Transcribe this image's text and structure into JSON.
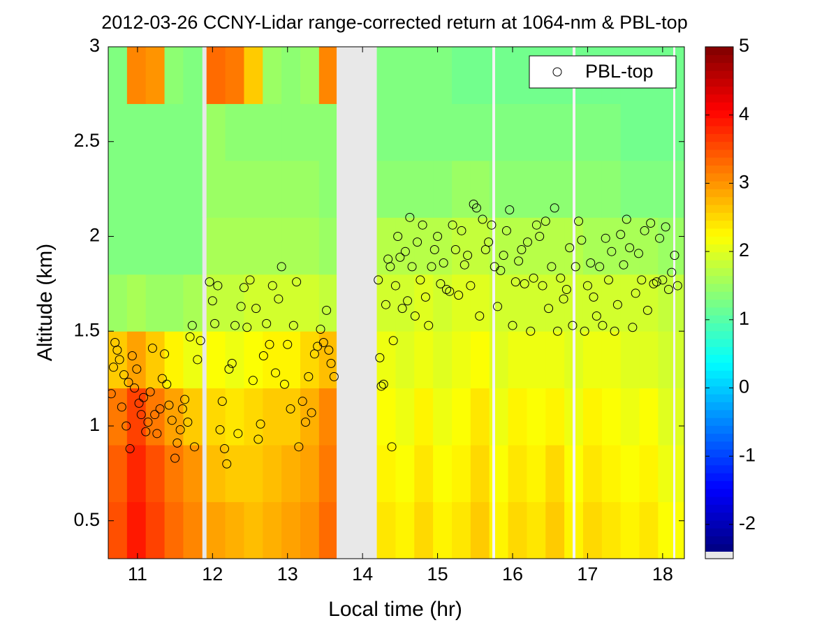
{
  "chart_data": {
    "type": "heatmap",
    "title": "2012-03-26 CCNY-Lidar range-corrected return at 1064-nm & PBL-top",
    "xlabel": "Local time (hr)",
    "ylabel": "Altitude (km)",
    "xlim": [
      10.61,
      18.29
    ],
    "ylim": [
      0.3,
      3
    ],
    "xticks": [
      11,
      12,
      13,
      14,
      15,
      16,
      17,
      18
    ],
    "yticks": [
      0.5,
      1,
      1.5,
      2,
      2.5,
      3
    ],
    "clim": [
      -2.4,
      5
    ],
    "colorbar_ticks": [
      -2,
      -1,
      0,
      1,
      2,
      3,
      4,
      5
    ],
    "colormap": "jet",
    "legend_position": "upper right",
    "x_edges": [
      10.61,
      10.86,
      11.11,
      11.36,
      11.61,
      11.86,
      11.92,
      12.17,
      12.42,
      12.67,
      12.92,
      13.17,
      13.42,
      13.65,
      14.19,
      14.44,
      14.69,
      14.94,
      15.19,
      15.44,
      15.69,
      15.94,
      16.19,
      16.44,
      16.69,
      16.94,
      17.19,
      17.44,
      17.69,
      17.94,
      18.29
    ],
    "y_edges": [
      0.3,
      0.6,
      0.9,
      1.2,
      1.5,
      1.8,
      2.1,
      2.4,
      2.7,
      3.0
    ],
    "z": [
      [
        3.5,
        3.9,
        3.6,
        3.3,
        3.1,
        null,
        2.9,
        2.8,
        2.7,
        2.8,
        2.9,
        3.0,
        3.3,
        null,
        2.4,
        2.3,
        2.5,
        2.3,
        2.4,
        2.6,
        2.3,
        2.5,
        2.4,
        2.6,
        2.3,
        2.5,
        2.4,
        2.3,
        2.4,
        2.2
      ],
      [
        3.4,
        3.8,
        3.5,
        3.2,
        3.0,
        null,
        2.7,
        2.6,
        2.6,
        2.7,
        2.8,
        2.9,
        3.2,
        null,
        2.3,
        2.2,
        2.4,
        2.2,
        2.3,
        2.5,
        2.2,
        2.4,
        2.3,
        2.5,
        2.2,
        2.4,
        2.3,
        2.2,
        2.3,
        2.1
      ],
      [
        3.2,
        3.6,
        3.2,
        2.9,
        2.6,
        null,
        2.5,
        2.4,
        2.5,
        2.6,
        2.6,
        2.8,
        3.1,
        null,
        2.2,
        2.1,
        2.3,
        2.1,
        2.2,
        2.4,
        2.1,
        2.3,
        2.2,
        2.3,
        2.1,
        2.3,
        2.2,
        2.1,
        2.2,
        2.0
      ],
      [
        2.6,
        2.9,
        2.6,
        2.3,
        2.1,
        null,
        2.2,
        2.1,
        2.2,
        2.3,
        2.3,
        2.5,
        2.7,
        null,
        2.1,
        2.0,
        2.1,
        2.0,
        2.1,
        2.2,
        2.0,
        2.1,
        2.1,
        2.1,
        2.0,
        2.1,
        2.1,
        2.0,
        2.0,
        1.9
      ],
      [
        1.5,
        1.6,
        1.5,
        1.5,
        1.6,
        null,
        1.8,
        1.8,
        1.9,
        1.9,
        1.9,
        1.9,
        1.8,
        null,
        1.9,
        1.9,
        2.0,
        1.9,
        2.0,
        2.0,
        1.9,
        1.9,
        1.9,
        1.9,
        1.9,
        1.9,
        1.9,
        1.9,
        1.9,
        1.8
      ],
      [
        1.3,
        1.3,
        1.3,
        1.3,
        1.3,
        null,
        1.6,
        1.6,
        1.6,
        1.6,
        1.6,
        1.6,
        1.5,
        null,
        1.7,
        1.7,
        1.7,
        1.7,
        1.8,
        1.8,
        1.7,
        1.7,
        1.7,
        1.7,
        1.7,
        1.6,
        1.6,
        1.6,
        1.6,
        1.5
      ],
      [
        1.3,
        1.3,
        1.3,
        1.3,
        1.3,
        null,
        1.5,
        1.5,
        1.5,
        1.5,
        1.5,
        1.5,
        1.4,
        null,
        1.4,
        1.4,
        1.4,
        1.4,
        1.5,
        1.5,
        1.4,
        1.4,
        1.4,
        1.4,
        1.4,
        1.4,
        1.4,
        1.3,
        1.3,
        1.3
      ],
      [
        1.3,
        1.3,
        1.3,
        1.3,
        1.3,
        null,
        1.5,
        1.4,
        1.4,
        1.4,
        1.4,
        1.4,
        1.4,
        null,
        1.3,
        1.3,
        1.3,
        1.3,
        1.3,
        1.3,
        1.3,
        1.3,
        1.3,
        1.3,
        1.3,
        1.3,
        1.3,
        1.2,
        1.2,
        1.2
      ],
      [
        1.3,
        3.1,
        3.0,
        1.4,
        1.3,
        null,
        3.3,
        3.2,
        2.6,
        1.5,
        1.4,
        1.5,
        3.1,
        null,
        1.3,
        1.3,
        1.3,
        1.3,
        1.2,
        1.2,
        1.2,
        1.2,
        1.2,
        1.2,
        1.2,
        1.2,
        1.2,
        1.2,
        1.2,
        1.2
      ]
    ],
    "series": [
      {
        "name": "PBL-top",
        "color": "#000000",
        "x": [
          10.65,
          10.68,
          10.7,
          10.73,
          10.76,
          10.79,
          10.82,
          10.85,
          10.88,
          10.9,
          10.93,
          10.96,
          10.99,
          11.02,
          11.05,
          11.08,
          11.11,
          11.14,
          11.17,
          11.2,
          11.23,
          11.26,
          11.3,
          11.33,
          11.36,
          11.39,
          11.42,
          11.46,
          11.5,
          11.53,
          11.57,
          11.6,
          11.63,
          11.67,
          11.7,
          11.73,
          11.76,
          11.8,
          11.84,
          11.96,
          12.0,
          12.03,
          12.07,
          12.1,
          12.13,
          12.16,
          12.19,
          12.22,
          12.26,
          12.3,
          12.34,
          12.38,
          12.42,
          12.46,
          12.5,
          12.54,
          12.58,
          12.61,
          12.64,
          12.68,
          12.72,
          12.76,
          12.8,
          12.84,
          12.88,
          12.92,
          12.96,
          13.0,
          13.04,
          13.08,
          13.12,
          13.15,
          13.2,
          13.24,
          13.28,
          13.32,
          13.36,
          13.4,
          13.44,
          13.48,
          13.52,
          13.55,
          13.58,
          13.62,
          14.21,
          14.23,
          14.25,
          14.28,
          14.31,
          14.34,
          14.37,
          14.39,
          14.41,
          14.44,
          14.47,
          14.5,
          14.53,
          14.57,
          14.6,
          14.63,
          14.66,
          14.7,
          14.73,
          14.77,
          14.8,
          14.84,
          14.88,
          14.92,
          14.96,
          15.0,
          15.04,
          15.08,
          15.12,
          15.16,
          15.2,
          15.24,
          15.28,
          15.32,
          15.36,
          15.4,
          15.44,
          15.48,
          15.52,
          15.56,
          15.6,
          15.64,
          15.68,
          15.72,
          15.76,
          15.8,
          15.84,
          15.88,
          15.92,
          15.96,
          16.0,
          16.04,
          16.08,
          16.12,
          16.16,
          16.2,
          16.24,
          16.28,
          16.32,
          16.36,
          16.4,
          16.44,
          16.48,
          16.52,
          16.56,
          16.6,
          16.64,
          16.68,
          16.72,
          16.76,
          16.8,
          16.84,
          16.88,
          16.92,
          16.96,
          17.0,
          17.04,
          17.08,
          17.12,
          17.16,
          17.2,
          17.24,
          17.28,
          17.32,
          17.36,
          17.4,
          17.44,
          17.48,
          17.52,
          17.56,
          17.6,
          17.64,
          17.68,
          17.72,
          17.76,
          17.8,
          17.84,
          17.88,
          17.92,
          17.96,
          18.0,
          18.04,
          18.08,
          18.12,
          18.16,
          18.2
        ],
        "y": [
          1.17,
          1.31,
          1.44,
          1.4,
          1.35,
          1.1,
          1.27,
          1.0,
          1.23,
          0.88,
          1.37,
          1.2,
          1.3,
          1.12,
          1.06,
          1.15,
          0.97,
          1.02,
          1.18,
          1.41,
          1.06,
          0.96,
          1.09,
          1.25,
          1.38,
          1.22,
          1.11,
          1.03,
          0.83,
          0.91,
          0.98,
          1.09,
          1.14,
          1.02,
          1.47,
          1.53,
          0.89,
          1.35,
          1.45,
          1.76,
          1.66,
          1.54,
          1.74,
          0.98,
          1.13,
          0.88,
          0.8,
          1.3,
          1.33,
          1.53,
          0.96,
          1.63,
          1.73,
          1.52,
          1.77,
          1.24,
          1.62,
          0.93,
          1.01,
          1.37,
          1.54,
          1.43,
          1.74,
          1.28,
          1.67,
          1.84,
          1.22,
          1.43,
          1.09,
          1.53,
          1.76,
          0.89,
          1.13,
          1.02,
          1.26,
          1.07,
          1.38,
          1.42,
          1.51,
          1.44,
          1.61,
          1.4,
          1.33,
          1.26,
          1.77,
          1.36,
          1.21,
          1.22,
          1.64,
          1.88,
          1.84,
          0.89,
          1.45,
          1.74,
          2.0,
          1.89,
          1.62,
          1.92,
          1.66,
          2.1,
          1.84,
          1.58,
          1.97,
          1.77,
          2.06,
          1.68,
          1.53,
          1.84,
          1.93,
          2.0,
          1.75,
          1.86,
          1.72,
          1.71,
          2.06,
          1.93,
          1.69,
          2.03,
          1.85,
          1.9,
          1.74,
          2.17,
          2.15,
          1.58,
          2.09,
          1.93,
          1.97,
          2.06,
          1.84,
          1.63,
          1.82,
          1.9,
          2.03,
          2.14,
          1.53,
          1.76,
          1.87,
          1.93,
          1.75,
          1.97,
          1.5,
          1.78,
          2.06,
          2.0,
          1.74,
          2.08,
          1.62,
          1.84,
          2.15,
          1.5,
          1.78,
          1.67,
          1.72,
          1.94,
          1.53,
          1.84,
          2.08,
          1.98,
          1.5,
          1.74,
          1.86,
          1.68,
          1.58,
          1.84,
          1.53,
          1.99,
          1.77,
          1.92,
          1.5,
          1.64,
          2.01,
          1.85,
          2.09,
          1.94,
          1.52,
          1.7,
          1.91,
          1.77,
          2.03,
          1.61,
          2.07,
          1.75,
          1.76,
          1.99,
          1.77,
          2.05,
          1.72,
          1.81,
          1.9,
          1.74
        ]
      }
    ]
  }
}
